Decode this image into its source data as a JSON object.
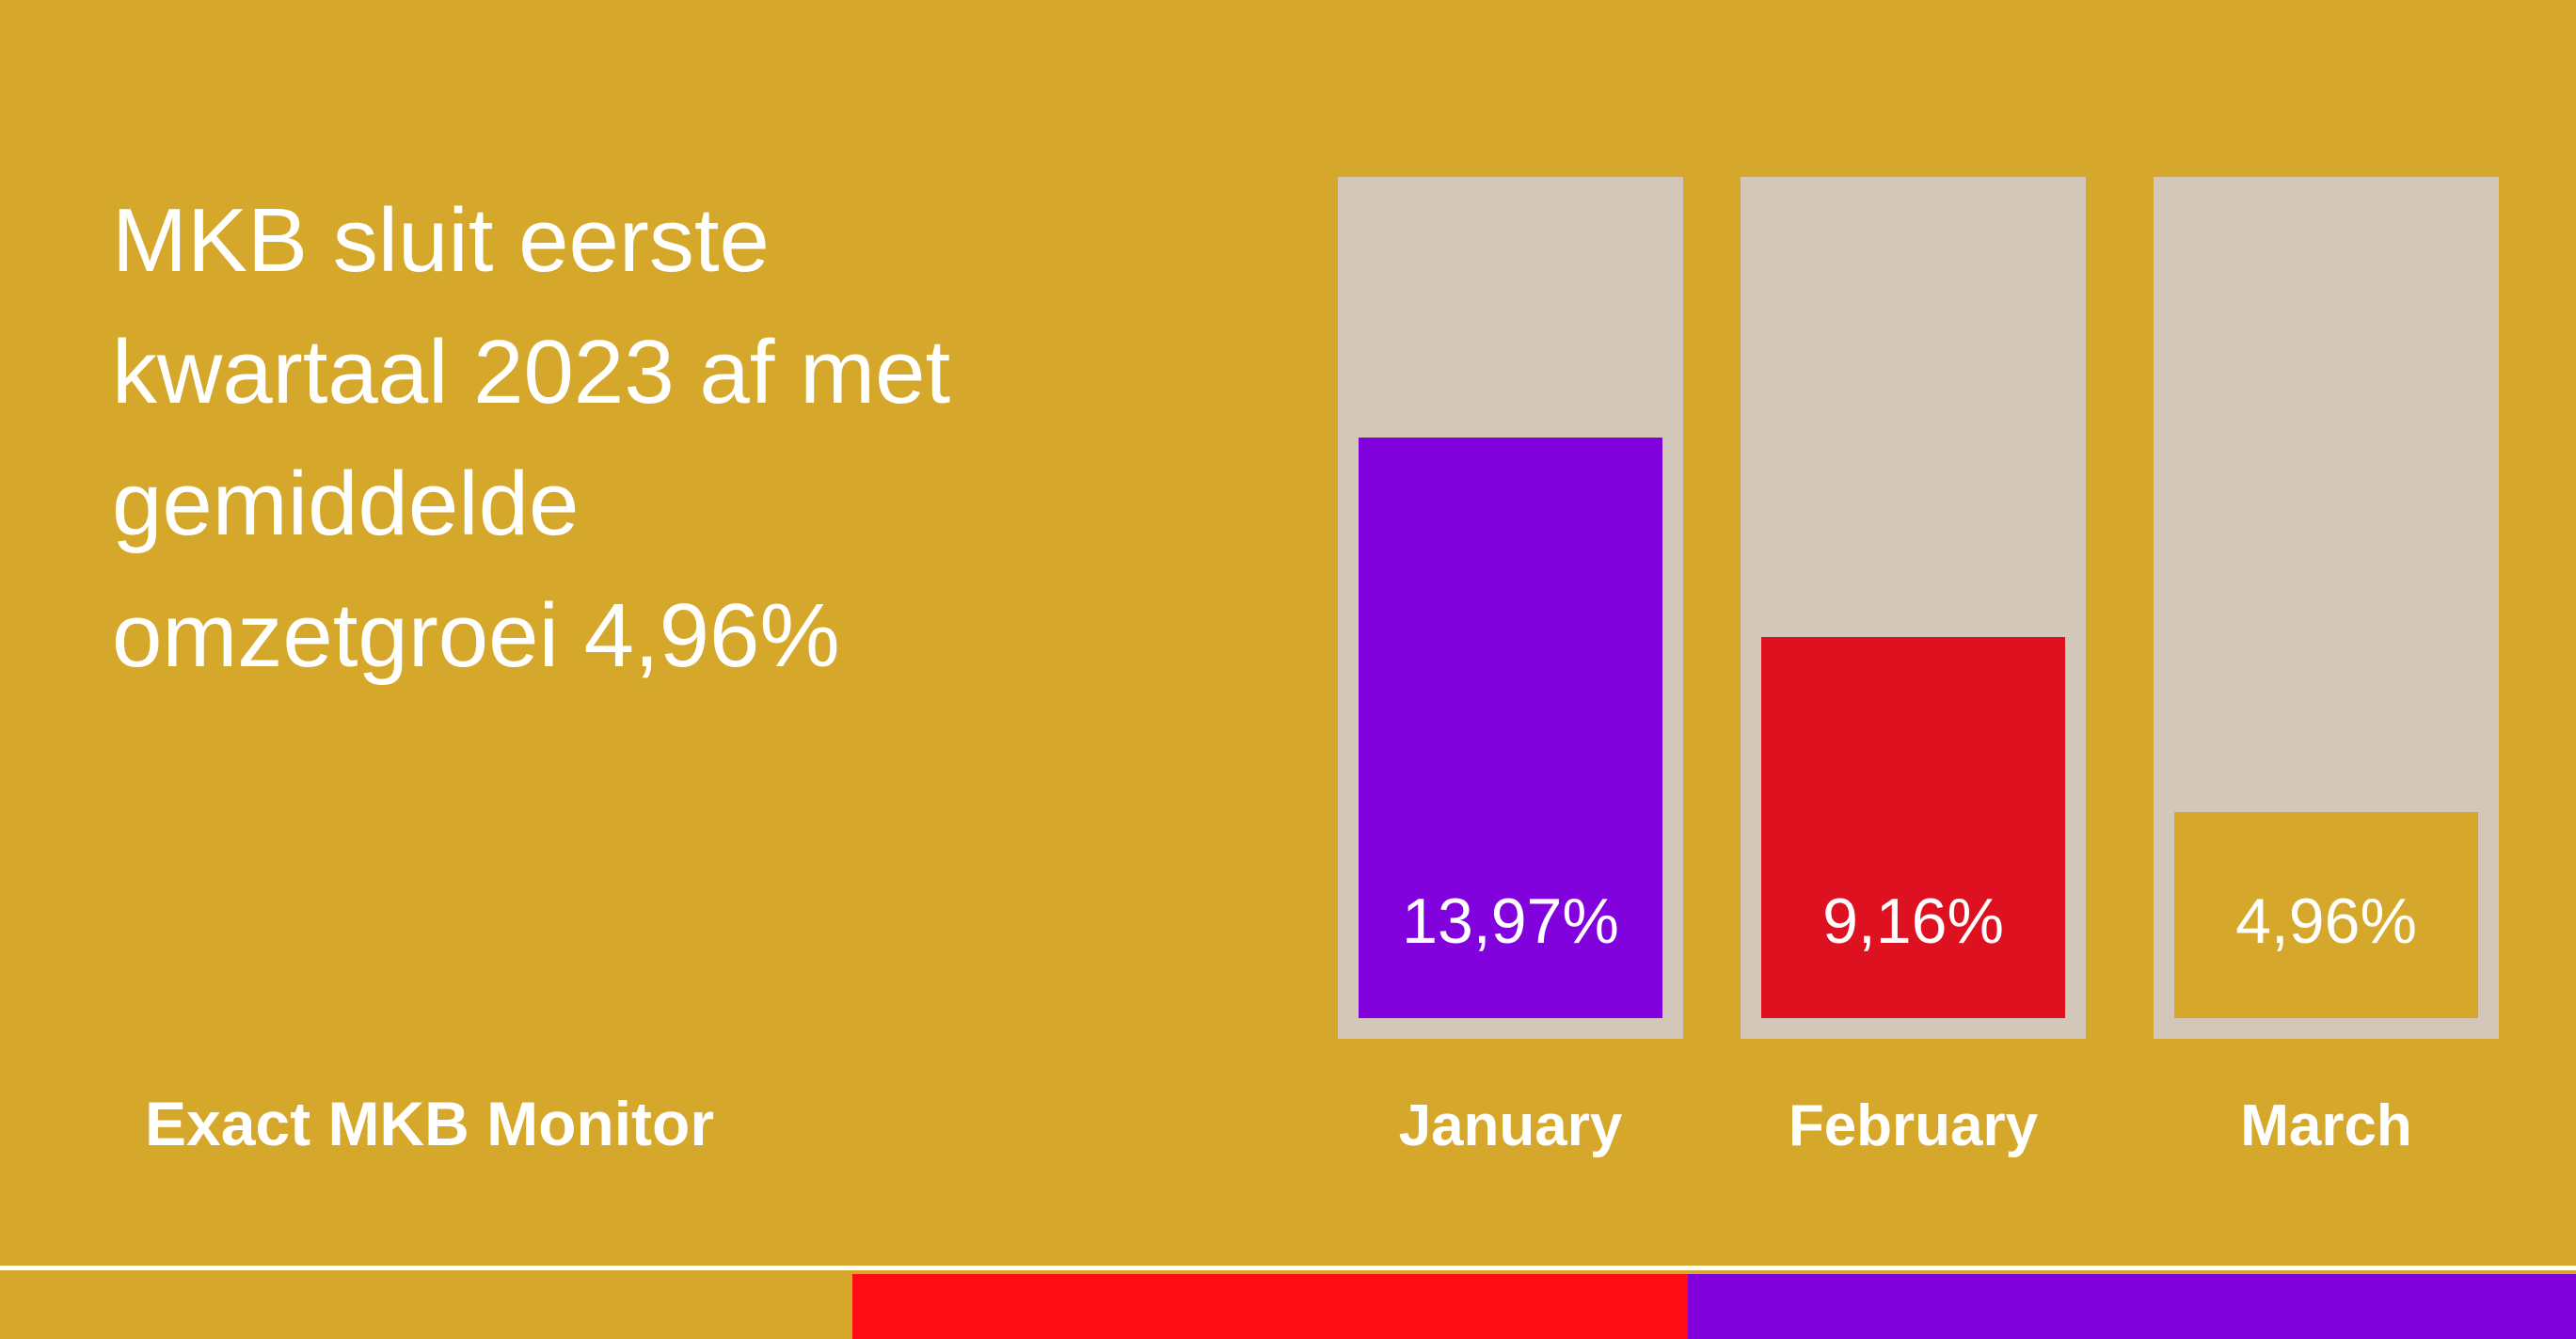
{
  "page": {
    "background_color": "#d5a82b",
    "title_lines": [
      "MKB sluit eerste",
      "kwartaal 2023 af met",
      "gemiddelde",
      "omzetgroei 4,96%"
    ],
    "brand": "Exact MKB Monitor"
  },
  "chart_data": {
    "type": "bar",
    "title": "MKB sluit eerste kwartaal 2023 af met gemiddelde omzetgroei 4,96%",
    "categories": [
      "January",
      "February",
      "March"
    ],
    "values": [
      13.97,
      9.16,
      4.96
    ],
    "value_labels": [
      "13,97%",
      "9,16%",
      "4,96%"
    ],
    "unit": "%",
    "ylim": [
      0,
      19.7
    ],
    "bar_colors": [
      "#8202dd",
      "#de1120",
      "#d5a82b"
    ],
    "track_color": "#d2c7b8",
    "label_color": "#ffffff",
    "grid": false,
    "legend": "none"
  },
  "footer": {
    "divider_color": "#ffffff",
    "stripe_segments": [
      {
        "name": "gold",
        "color": "#d5a82b",
        "width_pct": 33.09
      },
      {
        "name": "red",
        "color": "#ff0c14",
        "width_pct": 32.43
      },
      {
        "name": "purple",
        "color": "#8202dd",
        "width_pct": 34.48
      }
    ]
  }
}
